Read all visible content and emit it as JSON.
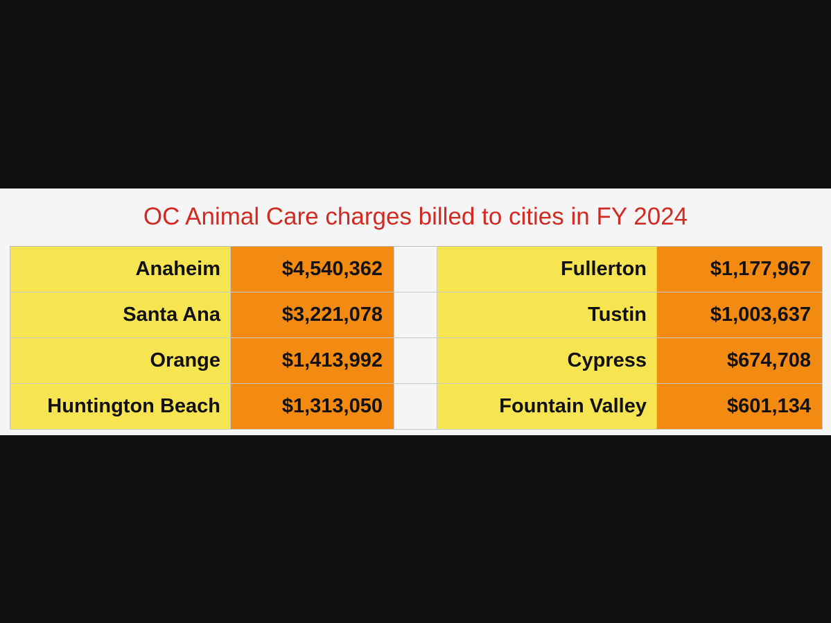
{
  "title": "OC Animal Care charges billed to cities in FY 2024",
  "colors": {
    "title": "#d12a22",
    "city_cell": "#f6e451",
    "amount_cell": "#f38b12",
    "background": "#111111",
    "panel": "#f5f5f6"
  },
  "chart_data": {
    "type": "table",
    "title": "OC Animal Care charges billed to cities in FY 2024",
    "columns": [
      {
        "rows": [
          {
            "city": "Anaheim",
            "amount": "$4,540,362",
            "value": 4540362
          },
          {
            "city": "Santa Ana",
            "amount": "$3,221,078",
            "value": 3221078
          },
          {
            "city": "Orange",
            "amount": "$1,413,992",
            "value": 1413992
          },
          {
            "city": "Huntington Beach",
            "amount": "$1,313,050",
            "value": 1313050
          }
        ]
      },
      {
        "rows": [
          {
            "city": "Fullerton",
            "amount": "$1,177,967",
            "value": 1177967
          },
          {
            "city": "Tustin",
            "amount": "$1,003,637",
            "value": 1003637
          },
          {
            "city": "Cypress",
            "amount": "$674,708",
            "value": 674708
          },
          {
            "city": "Fountain Valley",
            "amount": "$601,134",
            "value": 601134
          }
        ]
      }
    ]
  }
}
